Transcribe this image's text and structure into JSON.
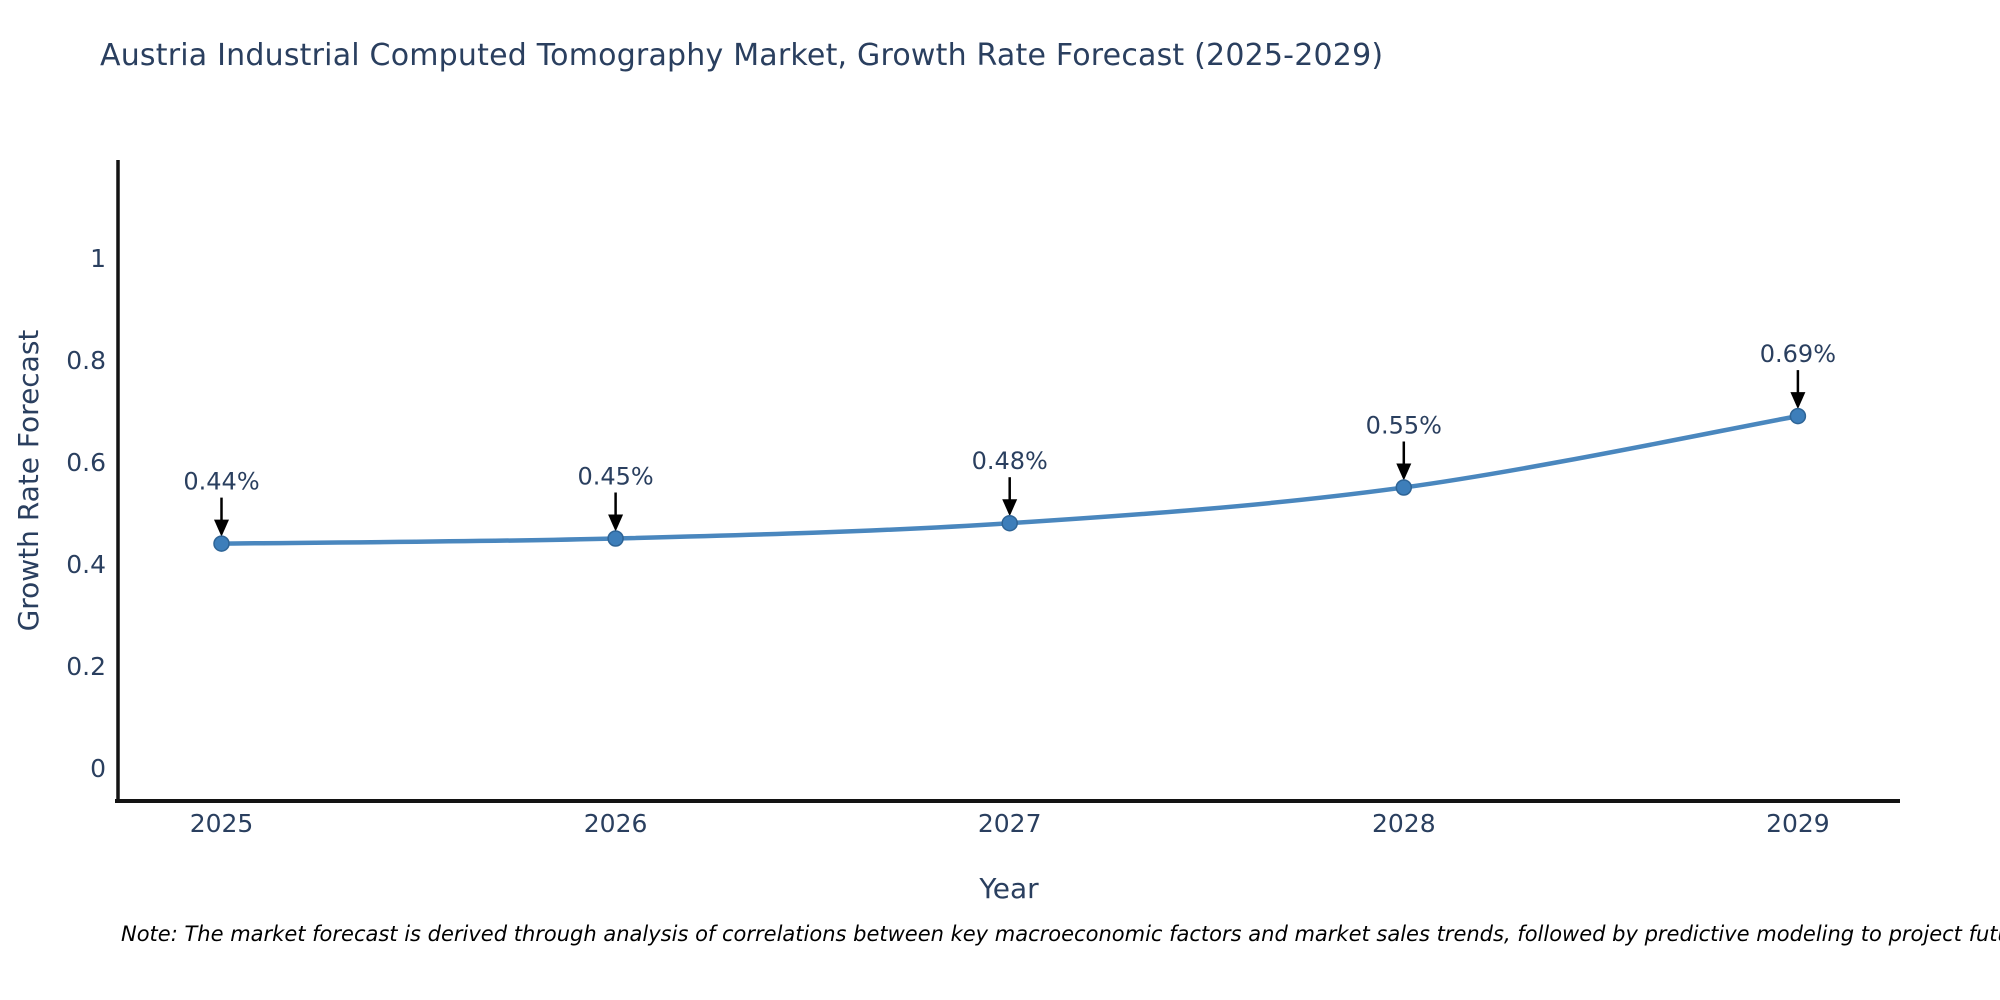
{
  "page": {
    "background": "#ffffff"
  },
  "chart": {
    "colors": {
      "line": "#4a87be",
      "marker": "#3d7eba",
      "marker_edge": "#2e6496",
      "axis": "#131313",
      "text": "#2a3f5f",
      "annotation": "#2a3f5f",
      "arrow": "#000000",
      "note_text": "#000000"
    }
  },
  "chart_data": {
    "type": "line",
    "title": "Austria Industrial Computed Tomography Market, Growth Rate Forecast (2025-2029)",
    "categories": [
      "2025",
      "2026",
      "2027",
      "2028",
      "2029"
    ],
    "values": [
      0.44,
      0.45,
      0.48,
      0.55,
      0.69
    ],
    "point_labels": [
      "0.44%",
      "0.45%",
      "0.48%",
      "0.55%",
      "0.69%"
    ],
    "series_name": "Growth Rate Forecast",
    "xlabel": "Year",
    "ylabel": "Growth Rate Forecast",
    "yticks": [
      "0",
      "0.2",
      "0.4",
      "0.6",
      "0.8",
      "1"
    ],
    "ytick_values": [
      0,
      0.2,
      0.4,
      0.6,
      0.8,
      1
    ],
    "ylim": [
      -0.065,
      1.19
    ],
    "grid": false,
    "legend": "none",
    "line_shape": "spline",
    "annotation_style": "arrow-down-to-point",
    "note": "Note: The market forecast is derived through analysis of correlations between key macroeconomic factors and market sales trends, followed by predictive modeling to project future sales"
  }
}
